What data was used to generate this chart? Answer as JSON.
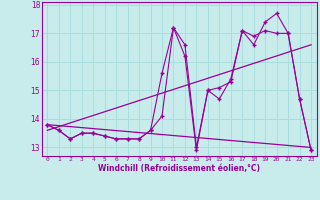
{
  "xlabel": "Windchill (Refroidissement éolien,°C)",
  "bg_color": "#c8ecec",
  "line_color": "#990099",
  "grid_color": "#aadddd",
  "x_hours": [
    0,
    1,
    2,
    3,
    4,
    5,
    6,
    7,
    8,
    9,
    10,
    11,
    12,
    13,
    14,
    15,
    16,
    17,
    18,
    19,
    20,
    21,
    22,
    23
  ],
  "temp_line": [
    13.8,
    13.6,
    13.3,
    13.5,
    13.5,
    13.4,
    13.3,
    13.3,
    13.3,
    13.6,
    14.1,
    17.2,
    16.6,
    13.0,
    15.0,
    14.7,
    15.4,
    17.1,
    16.6,
    17.4,
    17.7,
    17.0,
    14.7,
    12.9
  ],
  "windchill_line": [
    13.8,
    13.6,
    13.3,
    13.5,
    13.5,
    13.4,
    13.3,
    13.3,
    13.3,
    13.6,
    15.6,
    17.2,
    16.2,
    12.9,
    15.0,
    15.1,
    15.3,
    17.1,
    16.9,
    17.1,
    17.0,
    17.0,
    14.7,
    12.9
  ],
  "trend1_x": [
    0,
    23
  ],
  "trend1_y": [
    13.6,
    16.6
  ],
  "trend2_x": [
    0,
    23
  ],
  "trend2_y": [
    13.8,
    13.0
  ],
  "ylim": [
    12.7,
    18.1
  ],
  "yticks": [
    13,
    14,
    15,
    16,
    17,
    18
  ],
  "xticks": [
    0,
    1,
    2,
    3,
    4,
    5,
    6,
    7,
    8,
    9,
    10,
    11,
    12,
    13,
    14,
    15,
    16,
    17,
    18,
    19,
    20,
    21,
    22,
    23
  ]
}
